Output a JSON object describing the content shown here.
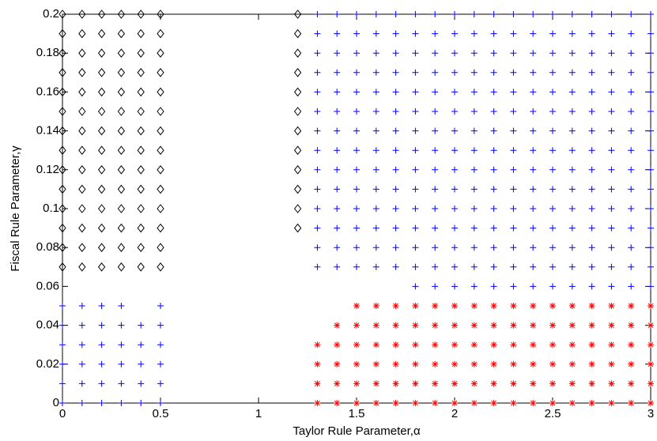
{
  "chart_data": {
    "type": "scatter",
    "xlabel": "Taylor Rule Parameter,α",
    "ylabel": "Fiscal Rule Parameter,γ",
    "xlim": [
      0,
      3
    ],
    "ylim": [
      0,
      0.2
    ],
    "xticks": [
      0,
      0.5,
      1,
      1.5,
      2,
      2.5,
      3
    ],
    "yticks": [
      0,
      0.02,
      0.04,
      0.06,
      0.08,
      0.1,
      0.12,
      0.14,
      0.16,
      0.18,
      0.2
    ],
    "series": [
      {
        "marker": "diamond",
        "color": "#000000",
        "x": [
          0,
          0.1,
          0.2,
          0.3,
          0.4,
          0.5,
          1.2,
          0,
          0.1,
          0.2,
          0.3,
          0.4,
          0.5,
          1.2,
          0,
          0.1,
          0.2,
          0.3,
          0.4,
          0.5,
          1.2,
          0,
          0.1,
          0.2,
          0.3,
          0.4,
          0.5,
          1.2,
          0,
          0.1,
          0.2,
          0.3,
          0.4,
          0.5,
          1.2,
          0,
          0.1,
          0.2,
          0.3,
          0.4,
          0.5,
          1.2,
          0,
          0.1,
          0.2,
          0.3,
          0.4,
          0.5,
          1.2,
          0,
          0.1,
          0.2,
          0.3,
          0.4,
          0.5,
          1.2,
          0,
          0.1,
          0.2,
          0.3,
          0.4,
          0.5,
          1.2,
          0,
          0.1,
          0.2,
          0.3,
          0.4,
          0.5,
          1.2,
          0,
          0.1,
          0.2,
          0.3,
          0.4,
          0.5,
          1.2,
          0,
          0.1,
          0.2,
          0.3,
          0.4,
          0.5,
          1.2,
          0,
          0.1,
          0.2,
          0.3,
          0.4,
          0.5,
          0,
          0.1,
          0.2,
          0.3,
          0.4,
          0.5
        ],
        "values": [
          0.2,
          0.2,
          0.2,
          0.2,
          0.2,
          0.2,
          0.2,
          0.19,
          0.19,
          0.19,
          0.19,
          0.19,
          0.19,
          0.19,
          0.18,
          0.18,
          0.18,
          0.18,
          0.18,
          0.18,
          0.18,
          0.17,
          0.17,
          0.17,
          0.17,
          0.17,
          0.17,
          0.17,
          0.16,
          0.16,
          0.16,
          0.16,
          0.16,
          0.16,
          0.16,
          0.15,
          0.15,
          0.15,
          0.15,
          0.15,
          0.15,
          0.15,
          0.14,
          0.14,
          0.14,
          0.14,
          0.14,
          0.14,
          0.14,
          0.13,
          0.13,
          0.13,
          0.13,
          0.13,
          0.13,
          0.13,
          0.12,
          0.12,
          0.12,
          0.12,
          0.12,
          0.12,
          0.12,
          0.11,
          0.11,
          0.11,
          0.11,
          0.11,
          0.11,
          0.11,
          0.1,
          0.1,
          0.1,
          0.1,
          0.1,
          0.1,
          0.1,
          0.09,
          0.09,
          0.09,
          0.09,
          0.09,
          0.09,
          0.09,
          0.08,
          0.08,
          0.08,
          0.08,
          0.08,
          0.08,
          0.07,
          0.07,
          0.07,
          0.07,
          0.07,
          0.07
        ]
      },
      {
        "marker": "plus",
        "color": "#0000ff",
        "x": [
          1.3,
          1.4,
          1.5,
          1.6,
          1.7,
          1.8,
          1.9,
          2,
          2.1,
          2.2,
          2.3,
          2.4,
          2.5,
          2.6,
          2.7,
          2.8,
          2.9,
          3,
          1.3,
          1.4,
          1.5,
          1.6,
          1.7,
          1.8,
          1.9,
          2,
          2.1,
          2.2,
          2.3,
          2.4,
          2.5,
          2.6,
          2.7,
          2.8,
          2.9,
          3,
          1.3,
          1.4,
          1.5,
          1.6,
          1.7,
          1.8,
          1.9,
          2,
          2.1,
          2.2,
          2.3,
          2.4,
          2.5,
          2.6,
          2.7,
          2.8,
          2.9,
          3,
          1.3,
          1.4,
          1.5,
          1.6,
          1.7,
          1.8,
          1.9,
          2,
          2.1,
          2.2,
          2.3,
          2.4,
          2.5,
          2.6,
          2.7,
          2.8,
          2.9,
          3,
          1.3,
          1.4,
          1.5,
          1.6,
          1.7,
          1.8,
          1.9,
          2,
          2.1,
          2.2,
          2.3,
          2.4,
          2.5,
          2.6,
          2.7,
          2.8,
          2.9,
          3,
          1.3,
          1.4,
          1.5,
          1.6,
          1.7,
          1.8,
          1.9,
          2,
          2.1,
          2.2,
          2.3,
          2.4,
          2.5,
          2.6,
          2.7,
          2.8,
          2.9,
          3,
          1.3,
          1.4,
          1.5,
          1.6,
          1.7,
          1.8,
          1.9,
          2,
          2.1,
          2.2,
          2.3,
          2.4,
          2.5,
          2.6,
          2.7,
          2.8,
          2.9,
          3,
          1.3,
          1.4,
          1.5,
          1.6,
          1.7,
          1.8,
          1.9,
          2,
          2.1,
          2.2,
          2.3,
          2.4,
          2.5,
          2.6,
          2.7,
          2.8,
          2.9,
          3,
          1.3,
          1.4,
          1.5,
          1.6,
          1.7,
          1.8,
          1.9,
          2,
          2.1,
          2.2,
          2.3,
          2.4,
          2.5,
          2.6,
          2.7,
          2.8,
          2.9,
          3,
          1.3,
          1.4,
          1.5,
          1.6,
          1.7,
          1.8,
          1.9,
          2,
          2.1,
          2.2,
          2.3,
          2.4,
          2.5,
          2.6,
          2.7,
          2.8,
          2.9,
          3,
          1.3,
          1.4,
          1.5,
          1.6,
          1.7,
          1.8,
          1.9,
          2,
          2.1,
          2.2,
          2.3,
          2.4,
          2.5,
          2.6,
          2.7,
          2.8,
          2.9,
          3,
          1.3,
          1.4,
          1.5,
          1.6,
          1.7,
          1.8,
          1.9,
          2,
          2.1,
          2.2,
          2.3,
          2.4,
          2.5,
          2.6,
          2.7,
          2.8,
          2.9,
          3,
          1.3,
          1.4,
          1.5,
          1.6,
          1.7,
          1.8,
          1.9,
          2,
          2.1,
          2.2,
          2.3,
          2.4,
          2.5,
          2.6,
          2.7,
          2.8,
          2.9,
          3,
          1.3,
          1.4,
          1.5,
          1.6,
          1.7,
          1.8,
          1.9,
          2,
          2.1,
          2.2,
          2.3,
          2.4,
          2.5,
          2.6,
          2.7,
          2.8,
          2.9,
          3,
          1.8,
          1.9,
          2,
          2.1,
          2.2,
          2.3,
          2.4,
          2.5,
          2.6,
          2.7,
          2.8,
          2.9,
          3,
          0,
          0.1,
          0.2,
          0.3,
          0.5,
          0,
          0.1,
          0.2,
          0.3,
          0.4,
          0.5,
          0,
          0.1,
          0.2,
          0.3,
          0.4,
          0.5,
          0,
          0.1,
          0.2,
          0.3,
          0.4,
          0.5,
          0,
          0.1,
          0.2,
          0.3,
          0.4,
          0.5,
          0,
          0.1,
          0.2,
          0.3,
          0.4,
          0.5
        ],
        "values": [
          0.2,
          0.2,
          0.2,
          0.2,
          0.2,
          0.2,
          0.2,
          0.2,
          0.2,
          0.2,
          0.2,
          0.2,
          0.2,
          0.2,
          0.2,
          0.2,
          0.2,
          0.2,
          0.19,
          0.19,
          0.19,
          0.19,
          0.19,
          0.19,
          0.19,
          0.19,
          0.19,
          0.19,
          0.19,
          0.19,
          0.19,
          0.19,
          0.19,
          0.19,
          0.19,
          0.19,
          0.18,
          0.18,
          0.18,
          0.18,
          0.18,
          0.18,
          0.18,
          0.18,
          0.18,
          0.18,
          0.18,
          0.18,
          0.18,
          0.18,
          0.18,
          0.18,
          0.18,
          0.18,
          0.17,
          0.17,
          0.17,
          0.17,
          0.17,
          0.17,
          0.17,
          0.17,
          0.17,
          0.17,
          0.17,
          0.17,
          0.17,
          0.17,
          0.17,
          0.17,
          0.17,
          0.17,
          0.16,
          0.16,
          0.16,
          0.16,
          0.16,
          0.16,
          0.16,
          0.16,
          0.16,
          0.16,
          0.16,
          0.16,
          0.16,
          0.16,
          0.16,
          0.16,
          0.16,
          0.16,
          0.15,
          0.15,
          0.15,
          0.15,
          0.15,
          0.15,
          0.15,
          0.15,
          0.15,
          0.15,
          0.15,
          0.15,
          0.15,
          0.15,
          0.15,
          0.15,
          0.15,
          0.15,
          0.14,
          0.14,
          0.14,
          0.14,
          0.14,
          0.14,
          0.14,
          0.14,
          0.14,
          0.14,
          0.14,
          0.14,
          0.14,
          0.14,
          0.14,
          0.14,
          0.14,
          0.14,
          0.13,
          0.13,
          0.13,
          0.13,
          0.13,
          0.13,
          0.13,
          0.13,
          0.13,
          0.13,
          0.13,
          0.13,
          0.13,
          0.13,
          0.13,
          0.13,
          0.13,
          0.13,
          0.12,
          0.12,
          0.12,
          0.12,
          0.12,
          0.12,
          0.12,
          0.12,
          0.12,
          0.12,
          0.12,
          0.12,
          0.12,
          0.12,
          0.12,
          0.12,
          0.12,
          0.12,
          0.11,
          0.11,
          0.11,
          0.11,
          0.11,
          0.11,
          0.11,
          0.11,
          0.11,
          0.11,
          0.11,
          0.11,
          0.11,
          0.11,
          0.11,
          0.11,
          0.11,
          0.11,
          0.1,
          0.1,
          0.1,
          0.1,
          0.1,
          0.1,
          0.1,
          0.1,
          0.1,
          0.1,
          0.1,
          0.1,
          0.1,
          0.1,
          0.1,
          0.1,
          0.1,
          0.1,
          0.09,
          0.09,
          0.09,
          0.09,
          0.09,
          0.09,
          0.09,
          0.09,
          0.09,
          0.09,
          0.09,
          0.09,
          0.09,
          0.09,
          0.09,
          0.09,
          0.09,
          0.09,
          0.08,
          0.08,
          0.08,
          0.08,
          0.08,
          0.08,
          0.08,
          0.08,
          0.08,
          0.08,
          0.08,
          0.08,
          0.08,
          0.08,
          0.08,
          0.08,
          0.08,
          0.08,
          0.07,
          0.07,
          0.07,
          0.07,
          0.07,
          0.07,
          0.07,
          0.07,
          0.07,
          0.07,
          0.07,
          0.07,
          0.07,
          0.07,
          0.07,
          0.07,
          0.07,
          0.07,
          0.06,
          0.06,
          0.06,
          0.06,
          0.06,
          0.06,
          0.06,
          0.06,
          0.06,
          0.06,
          0.06,
          0.06,
          0.06,
          0.05,
          0.05,
          0.05,
          0.05,
          0.05,
          0.04,
          0.04,
          0.04,
          0.04,
          0.04,
          0.04,
          0.03,
          0.03,
          0.03,
          0.03,
          0.03,
          0.03,
          0.02,
          0.02,
          0.02,
          0.02,
          0.02,
          0.02,
          0.01,
          0.01,
          0.01,
          0.01,
          0.01,
          0.01,
          0,
          0,
          0,
          0,
          0,
          0
        ]
      },
      {
        "marker": "star",
        "color": "#ff0000",
        "x": [
          1.5,
          1.6,
          1.7,
          1.8,
          1.9,
          2,
          2.1,
          2.2,
          2.3,
          2.4,
          2.5,
          2.6,
          2.7,
          2.8,
          2.9,
          3,
          1.4,
          1.5,
          1.6,
          1.7,
          1.8,
          1.9,
          2,
          2.1,
          2.2,
          2.3,
          2.4,
          2.5,
          2.6,
          2.7,
          2.8,
          2.9,
          3,
          1.3,
          1.4,
          1.5,
          1.6,
          1.7,
          1.8,
          1.9,
          2,
          2.1,
          2.2,
          2.3,
          2.4,
          2.5,
          2.6,
          2.7,
          2.8,
          2.9,
          3,
          1.3,
          1.4,
          1.5,
          1.6,
          1.7,
          1.8,
          1.9,
          2,
          2.1,
          2.2,
          2.3,
          2.4,
          2.5,
          2.6,
          2.7,
          2.8,
          2.9,
          3,
          1.3,
          1.4,
          1.5,
          1.6,
          1.7,
          1.8,
          1.9,
          2,
          2.1,
          2.2,
          2.3,
          2.4,
          2.5,
          2.6,
          2.7,
          2.8,
          2.9,
          3,
          1.3,
          1.4,
          1.5,
          1.6,
          1.7,
          1.8,
          1.9,
          2,
          2.1,
          2.2,
          2.3,
          2.4,
          2.5,
          2.6,
          2.7,
          2.8,
          2.9,
          3
        ],
        "values": [
          0.05,
          0.05,
          0.05,
          0.05,
          0.05,
          0.05,
          0.05,
          0.05,
          0.05,
          0.05,
          0.05,
          0.05,
          0.05,
          0.05,
          0.05,
          0.05,
          0.04,
          0.04,
          0.04,
          0.04,
          0.04,
          0.04,
          0.04,
          0.04,
          0.04,
          0.04,
          0.04,
          0.04,
          0.04,
          0.04,
          0.04,
          0.04,
          0.04,
          0.03,
          0.03,
          0.03,
          0.03,
          0.03,
          0.03,
          0.03,
          0.03,
          0.03,
          0.03,
          0.03,
          0.03,
          0.03,
          0.03,
          0.03,
          0.03,
          0.03,
          0.03,
          0.02,
          0.02,
          0.02,
          0.02,
          0.02,
          0.02,
          0.02,
          0.02,
          0.02,
          0.02,
          0.02,
          0.02,
          0.02,
          0.02,
          0.02,
          0.02,
          0.02,
          0.02,
          0.01,
          0.01,
          0.01,
          0.01,
          0.01,
          0.01,
          0.01,
          0.01,
          0.01,
          0.01,
          0.01,
          0.01,
          0.01,
          0.01,
          0.01,
          0.01,
          0.01,
          0.01,
          0,
          0,
          0,
          0,
          0,
          0,
          0,
          0,
          0,
          0,
          0,
          0,
          0,
          0,
          0,
          0,
          0,
          0
        ]
      }
    ]
  }
}
